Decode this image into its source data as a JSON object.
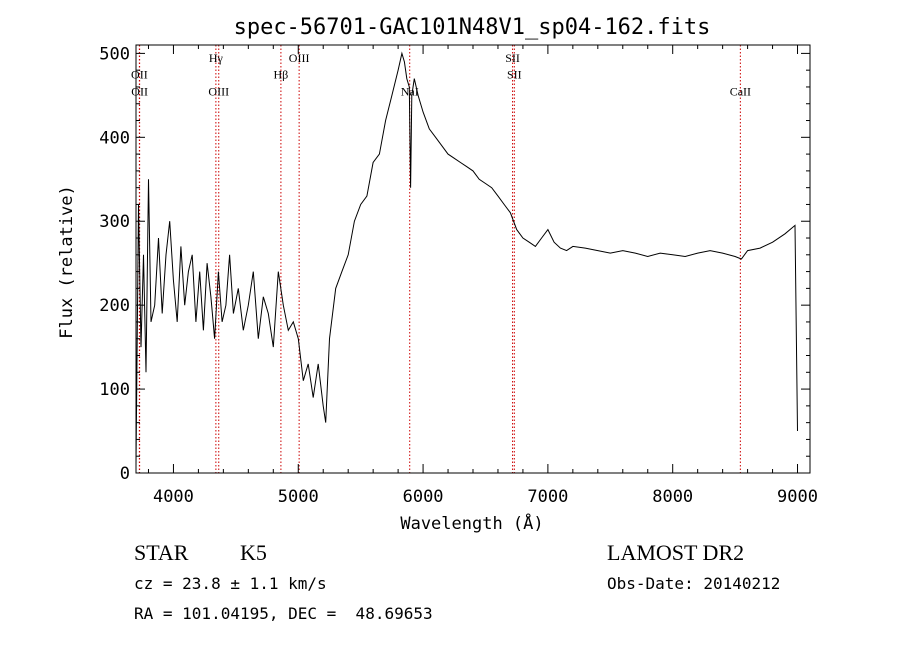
{
  "chart_data": {
    "type": "line",
    "title": "spec-56701-GAC101N48V1_sp04-162.fits",
    "xlabel": "Wavelength (Å)",
    "ylabel": "Flux (relative)",
    "xlim": [
      3700,
      9100
    ],
    "ylim": [
      0,
      510
    ],
    "xticks": [
      4000,
      5000,
      6000,
      7000,
      8000,
      9000
    ],
    "yticks": [
      0,
      100,
      200,
      300,
      400,
      500
    ],
    "grid": false,
    "line_color": "#000000",
    "marker_color": "#cc0000",
    "series": [
      {
        "x": [
          3700,
          3720,
          3740,
          3760,
          3780,
          3800,
          3820,
          3850,
          3880,
          3910,
          3940,
          3970,
          4000,
          4030,
          4060,
          4090,
          4120,
          4150,
          4180,
          4210,
          4240,
          4270,
          4300,
          4330,
          4360,
          4390,
          4420,
          4450,
          4480,
          4520,
          4560,
          4600,
          4640,
          4680,
          4720,
          4760,
          4800,
          4840,
          4880,
          4920,
          4960,
          5000,
          5040,
          5080,
          5120,
          5160,
          5200,
          5220,
          5250,
          5300,
          5350,
          5400,
          5450,
          5500,
          5550,
          5600,
          5650,
          5700,
          5750,
          5800,
          5830,
          5850,
          5870,
          5890,
          5900,
          5910,
          5930,
          5960,
          6000,
          6050,
          6100,
          6150,
          6200,
          6250,
          6300,
          6350,
          6400,
          6450,
          6500,
          6550,
          6600,
          6650,
          6700,
          6750,
          6800,
          6850,
          6900,
          6950,
          7000,
          7050,
          7100,
          7150,
          7200,
          7300,
          7400,
          7500,
          7600,
          7700,
          7800,
          7900,
          8000,
          8100,
          8200,
          8300,
          8400,
          8500,
          8550,
          8600,
          8700,
          8800,
          8900,
          8980,
          9000
        ],
        "y": [
          10,
          320,
          150,
          260,
          120,
          350,
          180,
          200,
          280,
          190,
          260,
          300,
          230,
          180,
          270,
          200,
          240,
          260,
          180,
          240,
          170,
          250,
          210,
          160,
          240,
          180,
          200,
          260,
          190,
          220,
          170,
          200,
          240,
          160,
          210,
          190,
          150,
          240,
          200,
          170,
          180,
          160,
          110,
          130,
          90,
          130,
          80,
          60,
          160,
          220,
          240,
          260,
          300,
          320,
          330,
          370,
          380,
          420,
          450,
          480,
          500,
          490,
          470,
          460,
          340,
          450,
          470,
          450,
          430,
          410,
          400,
          390,
          380,
          375,
          370,
          365,
          360,
          350,
          345,
          340,
          330,
          320,
          310,
          290,
          280,
          275,
          270,
          280,
          290,
          275,
          268,
          265,
          270,
          268,
          265,
          262,
          265,
          262,
          258,
          262,
          260,
          258,
          262,
          265,
          262,
          258,
          255,
          265,
          268,
          275,
          285,
          295,
          50
        ]
      }
    ],
    "markers": [
      {
        "label": "OII",
        "x": 3727,
        "y_text": 470
      },
      {
        "label": "OII",
        "x": 3729,
        "y_text": 450
      },
      {
        "label": "Hγ",
        "x": 4340,
        "y_text": 490
      },
      {
        "label": "OIII",
        "x": 4363,
        "y_text": 450
      },
      {
        "label": "Hβ",
        "x": 4861,
        "y_text": 470
      },
      {
        "label": "OIII",
        "x": 5007,
        "y_text": 490
      },
      {
        "label": "NaI",
        "x": 5893,
        "y_text": 450
      },
      {
        "label": "SII",
        "x": 6717,
        "y_text": 490
      },
      {
        "label": "SII",
        "x": 6731,
        "y_text": 470
      },
      {
        "label": "CaII",
        "x": 8542,
        "y_text": 450
      }
    ]
  },
  "info": {
    "object_class": "STAR",
    "subclass": "K5",
    "survey": "LAMOST DR2",
    "cz": "cz = 23.8 ± 1.1 km/s",
    "obs_date": "Obs-Date: 20140212",
    "coords": "RA = 101.04195, DEC =  48.69653"
  }
}
